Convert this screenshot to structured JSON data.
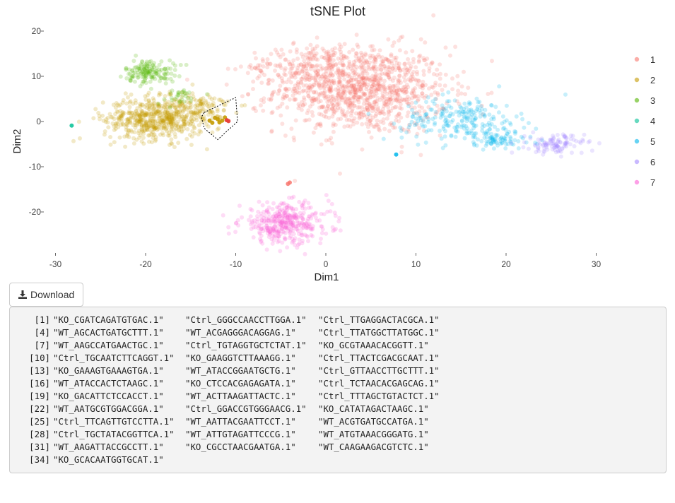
{
  "chart_data": {
    "type": "scatter",
    "title": "tSNE Plot",
    "xlabel": "Dim1",
    "ylabel": "Dim2",
    "xlim": [
      -31.5,
      34.5
    ],
    "ylim": [
      -29,
      20
    ],
    "xticks": [
      -30,
      -20,
      -10,
      0,
      10,
      20,
      30
    ],
    "yticks": [
      20,
      10,
      0,
      -10,
      -20
    ],
    "grid": false,
    "legend_position": "right",
    "series": [
      {
        "name": "1",
        "color": "#F8766D",
        "clusters": [
          {
            "cx": 4,
            "cy": 7,
            "sx": 4.8,
            "sy": 4.8,
            "n": 1050
          },
          {
            "cx": -1.5,
            "cy": 12,
            "sx": 3.5,
            "sy": 2.5,
            "n": 200
          }
        ],
        "outliers": [
          [
            -4,
            -13.5
          ],
          [
            -4.2,
            -13.8
          ]
        ]
      },
      {
        "name": "2",
        "color": "#C49A00",
        "clusters": [
          {
            "cx": -19,
            "cy": 0.5,
            "sx": 2.8,
            "sy": 2.3,
            "n": 520
          },
          {
            "cx": -15,
            "cy": 3,
            "sx": 2.3,
            "sy": 1.8,
            "n": 150
          }
        ],
        "selected": [
          [
            -12,
            0.5
          ],
          [
            -11.5,
            0.2
          ],
          [
            -12.3,
            0.8
          ],
          [
            -11.8,
            -0.2
          ],
          [
            -12.6,
            -0.3
          ],
          [
            -11.2,
            0.9
          ],
          [
            -12.9,
            0.2
          ]
        ]
      },
      {
        "name": "3",
        "color": "#53B400",
        "clusters": [
          {
            "cx": -19.5,
            "cy": 11,
            "sx": 1.4,
            "sy": 1.3,
            "n": 150
          },
          {
            "cx": -16.5,
            "cy": 5.5,
            "sx": 1.2,
            "sy": 0.9,
            "n": 30
          }
        ]
      },
      {
        "name": "4",
        "color": "#00C094",
        "clusters": [],
        "outliers": [
          [
            -28.2,
            -0.9
          ]
        ]
      },
      {
        "name": "5",
        "color": "#00B6EB",
        "clusters": [
          {
            "cx": 15,
            "cy": 0.5,
            "sx": 3.2,
            "sy": 2.5,
            "n": 220
          },
          {
            "cx": 19,
            "cy": -4,
            "sx": 2.2,
            "sy": 1.2,
            "n": 80
          }
        ],
        "outliers": [
          [
            7.8,
            -7.3
          ]
        ]
      },
      {
        "name": "6",
        "color": "#A58AFF",
        "clusters": [
          {
            "cx": 25.5,
            "cy": -5,
            "sx": 1.6,
            "sy": 1.1,
            "n": 110
          }
        ]
      },
      {
        "name": "7",
        "color": "#FB61D7",
        "clusters": [
          {
            "cx": -4.5,
            "cy": -22.5,
            "sx": 2.5,
            "sy": 2.2,
            "n": 380
          }
        ]
      }
    ],
    "lasso_selection": [
      [
        -13.5,
        2
      ],
      [
        -10,
        5.3
      ],
      [
        -9.8,
        0
      ],
      [
        -12,
        -4
      ],
      [
        -13.5,
        -1.5
      ],
      [
        -13.8,
        1
      ]
    ]
  },
  "download_label": "Download",
  "output": {
    "rows": [
      {
        "idx": "[1]",
        "cells": [
          "\"KO_CGATCAGATGTGAC.1\"",
          "\"Ctrl_GGGCCAACCTTGGA.1\"",
          "\"Ctrl_TTGAGGACTACGCA.1\""
        ]
      },
      {
        "idx": "[4]",
        "cells": [
          "\"WT_AGCACTGATGCTTT.1\"",
          "\"WT_ACGAGGGACAGGAG.1\"",
          "\"Ctrl_TTATGGCTTATGGC.1\""
        ]
      },
      {
        "idx": "[7]",
        "cells": [
          "\"WT_AAGCCATGAACTGC.1\"",
          "\"Ctrl_TGTAGGTGCTCTAT.1\"",
          "\"KO_GCGTAAACACGGTT.1\""
        ]
      },
      {
        "idx": "[10]",
        "cells": [
          "\"Ctrl_TGCAATCTTCAGGT.1\"",
          "\"KO_GAAGGTCTTAAAGG.1\"",
          "\"Ctrl_TTACTCGACGCAAT.1\""
        ]
      },
      {
        "idx": "[13]",
        "cells": [
          "\"KO_GAAAGTGAAAGTGA.1\"",
          "\"WT_ATACCGGAATGCTG.1\"",
          "\"Ctrl_GTTAACCTTGCTTT.1\""
        ]
      },
      {
        "idx": "[16]",
        "cells": [
          "\"WT_ATACCACTCTAAGC.1\"",
          "\"KO_CTCCACGAGAGATA.1\"",
          "\"Ctrl_TCTAACACGAGCAG.1\""
        ]
      },
      {
        "idx": "[19]",
        "cells": [
          "\"KO_GACATTCTCCACCT.1\"",
          "\"WT_ACTTAAGATTACTC.1\"",
          "\"Ctrl_TTTAGCTGTACTCT.1\""
        ]
      },
      {
        "idx": "[22]",
        "cells": [
          "\"WT_AATGCGTGGACGGA.1\"",
          "\"Ctrl_GGACCGTGGGAACG.1\"",
          "\"KO_CATATAGACTAAGC.1\""
        ]
      },
      {
        "idx": "[25]",
        "cells": [
          "\"Ctrl_TTCAGTTGTCCTTA.1\"",
          "\"WT_AATTACGAATTCCT.1\"",
          "\"WT_ACGTGATGCCATGA.1\""
        ]
      },
      {
        "idx": "[28]",
        "cells": [
          "\"Ctrl_TGCTATACGGTTCA.1\"",
          "\"WT_ATTGTAGATTCCCG.1\"",
          "\"WT_ATGTAAACGGGATG.1\""
        ]
      },
      {
        "idx": "[31]",
        "cells": [
          "\"WT_AAGATTACCGCCTT.1\"",
          "\"KO_CGCCTAACGAATGA.1\"",
          "\"WT_CAAGAAGACGTCTC.1\""
        ]
      },
      {
        "idx": "[34]",
        "cells": [
          "\"KO_GCACAATGGTGCAT.1\""
        ]
      }
    ]
  }
}
